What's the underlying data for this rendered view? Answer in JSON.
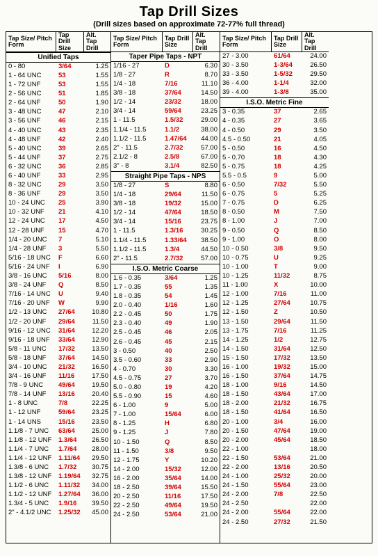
{
  "title": "Tap Drill Sizes",
  "subtitle": "(Drill sizes based on approximate 72-77% full thread)",
  "headers": {
    "c1": "Tap Size/\nPitch Form",
    "c2": "Tap\nDrill\nSize",
    "c3": "Alt.\nTap\nDrill"
  },
  "sections": {
    "unified": "Unified Taps",
    "npt": "Taper Pipe Taps - NPT",
    "nps": "Straight Pipe Taps - NPS",
    "iso_coarse": "I.S.O. Metric Coarse",
    "iso_fine": "I.S.O. Metric Fine"
  },
  "col1": [
    [
      "0 - 80",
      "3/64",
      "1.25"
    ],
    [
      "1 - 64 UNC",
      "53",
      "1.55"
    ],
    [
      "1 - 72 UNF",
      "53",
      "1.55"
    ],
    [
      "2 - 56 UNC",
      "51",
      "1.85"
    ],
    [
      "2 - 64 UNF",
      "50",
      "1.90"
    ],
    [
      "3 - 48 UNC",
      "47",
      "2.10"
    ],
    [
      "3 - 56 UNF",
      "46",
      "2.15"
    ],
    [
      "4 - 40 UNC",
      "43",
      "2.35"
    ],
    [
      "4 - 48 UNF",
      "42",
      "2.40"
    ],
    [
      "5 - 40 UNC",
      "39",
      "2.65"
    ],
    [
      "5 - 44 UNF",
      "37",
      "2.75"
    ],
    [
      "6 - 32 UNC",
      "36",
      "2.85"
    ],
    [
      "6 - 40 UNF",
      "33",
      "2.95"
    ],
    [
      "8 - 32 UNC",
      "29",
      "3.50"
    ],
    [
      "8 - 36 UNF",
      "29",
      "3.50"
    ],
    [
      "10 - 24 UNC",
      "25",
      "3.90"
    ],
    [
      "10 - 32 UNF",
      "21",
      "4.10"
    ],
    [
      "12 - 24 UNC",
      "17",
      "4.50"
    ],
    [
      "12 - 28 UNF",
      "15",
      "4.70"
    ],
    [
      "1/4 - 20 UNC",
      "7",
      "5.10"
    ],
    [
      "1/4 - 28 UNF",
      "3",
      "5.50"
    ],
    [
      "5/16 - 18 UNC",
      "F",
      "6.60"
    ],
    [
      "5/16 - 24 UNF",
      "I",
      "6.90"
    ],
    [
      "3/8 - 16 UNC",
      "5/16",
      "8.00"
    ],
    [
      "3/8 - 24 UNF",
      "Q",
      "8.50"
    ],
    [
      "7/16 - 14 UNC",
      "U",
      "9.40"
    ],
    [
      "7/16 - 20 UNF",
      "W",
      "9.90"
    ],
    [
      "1/2 - 13 UNC",
      "27/64",
      "10.80"
    ],
    [
      "1/2 - 20 UNF",
      "29/64",
      "11.50"
    ],
    [
      "9/16 - 12 UNC",
      "31/64",
      "12.20"
    ],
    [
      "9/16 - 18 UNF",
      "33/64",
      "12.90"
    ],
    [
      "5/8 - 11 UNC",
      "17/32",
      "13.50"
    ],
    [
      "5/8 - 18 UNF",
      "37/64",
      "14.50"
    ],
    [
      "3/4 - 10 UNC",
      "21/32",
      "16.50"
    ],
    [
      "3/4 - 16 UNF",
      "11/16",
      "17.50"
    ],
    [
      "7/8 - 9 UNC",
      "49/64",
      "19.50"
    ],
    [
      "7/8 - 14 UNF",
      "13/16",
      "20.40"
    ],
    [
      "1 - 8 UNC",
      "7/8",
      "22.25"
    ],
    [
      "1 - 12 UNF",
      "59/64",
      "23.25"
    ],
    [
      "1 - 14 UNS",
      "15/16",
      "23.50"
    ],
    [
      "1.1/8 - 7 UNC",
      "63/64",
      "25.00"
    ],
    [
      "1.1/8 - 12 UNF",
      "1.3/64",
      "26.50"
    ],
    [
      "1.1/4 - 7 UNC",
      "1.7/64",
      "28.00"
    ],
    [
      "1.1/4 - 12 UNF",
      "1.11/64",
      "29.50"
    ],
    [
      "1.3/8 - 6 UNC",
      "1.7/32",
      "30.75"
    ],
    [
      "1.3/8 - 12 UNF",
      "1.19/64",
      "32.75"
    ],
    [
      "1.1/2 - 6 UNC",
      "1.11/32",
      "34.00"
    ],
    [
      "1.1/2 - 12 UNF",
      "1.27/64",
      "36.00"
    ],
    [
      "1.3/4 - 5 UNC",
      "1.9/16",
      "39.50"
    ],
    [
      "2\" - 4.1/2 UNC",
      "1.25/32",
      "45.00"
    ]
  ],
  "col2_npt": [
    [
      "1/16 - 27",
      "D",
      "6.30"
    ],
    [
      "1/8 - 27",
      "R",
      "8.70"
    ],
    [
      "1/4 - 18",
      "7/16",
      "11.10"
    ],
    [
      "3/8 - 18",
      "37/64",
      "14.50"
    ],
    [
      "1/2 - 14",
      "23/32",
      "18.00"
    ],
    [
      "3/4 - 14",
      "59/64",
      "23.25"
    ],
    [
      "1 - 11.5",
      "1.5/32",
      "29.00"
    ],
    [
      "1.1/4 - 11.5",
      "1.1/2",
      "38.00"
    ],
    [
      "1.1/2 - 11.5",
      "1.47/64",
      "44.00"
    ],
    [
      "2\" - 11.5",
      "2.7/32",
      "57.00"
    ],
    [
      "2.1/2 - 8",
      "2.5/8",
      "67.00"
    ],
    [
      "3\" - 8",
      "3.1/4",
      "82.50"
    ]
  ],
  "col2_nps": [
    [
      "1/8 - 27",
      "S",
      "8.80"
    ],
    [
      "1/4 - 18",
      "29/64",
      "11.50"
    ],
    [
      "3/8 - 18",
      "19/32",
      "15.00"
    ],
    [
      "1/2 - 14",
      "47/64",
      "18.50"
    ],
    [
      "3/4 - 14",
      "15/16",
      "23.75"
    ],
    [
      "1 - 11.5",
      "1.3/16",
      "30.25"
    ],
    [
      "1.1/4 - 11.5",
      "1.33/64",
      "38.50"
    ],
    [
      "1.1/2 - 11.5",
      "1.3/4",
      "44.50"
    ],
    [
      "2\" - 11.5",
      "2.7/32",
      "57.00"
    ]
  ],
  "col2_iso": [
    [
      "1.6 - 0.35",
      "1.25",
      "",
      ""
    ],
    [
      "1.7 - 0.35",
      "1.35",
      "",
      ""
    ],
    [
      "1.8 - 0.35",
      "1.45",
      "",
      ""
    ],
    [
      "2.0 - 0.40",
      "1.60",
      "",
      ""
    ],
    [
      "2.2 - 0.45",
      "1.75",
      "",
      ""
    ],
    [
      "2.3 - 0.40",
      "1.90",
      "",
      ""
    ],
    [
      "2.5 - 0.45",
      "2.05",
      "",
      ""
    ],
    [
      "2.6 - 0.45",
      "2.15",
      "",
      ""
    ],
    [
      "3 - 0.50",
      "2.50",
      "",
      ""
    ],
    [
      "3.5 - 0.60",
      "2.90",
      "",
      ""
    ],
    [
      "4 - 0.70",
      "3.30",
      "",
      ""
    ],
    [
      "4.5 - 0.75",
      "3.70",
      "",
      ""
    ],
    [
      "5.0 - 0.80",
      "4.20",
      "",
      ""
    ],
    [
      "5.5 - 0.90",
      "4.60",
      "",
      ""
    ],
    [
      "6 - 1.00",
      "5.00",
      "",
      ""
    ],
    [
      "7 - 1.00",
      "6.00",
      "",
      ""
    ],
    [
      "8 - 1.25",
      "6.80",
      "",
      ""
    ],
    [
      "9 - 1.25",
      "7.80",
      "",
      ""
    ],
    [
      "10 - 1.50",
      "8.50",
      "",
      ""
    ],
    [
      "11 - 1.50",
      "9.50",
      "",
      ""
    ],
    [
      "12 - 1.75",
      "10.20",
      "",
      ""
    ],
    [
      "14 - 2.00",
      "12.00",
      "",
      ""
    ],
    [
      "16 - 2.00",
      "14.00",
      "",
      ""
    ],
    [
      "18 - 2.50",
      "15.50",
      "",
      ""
    ],
    [
      "20 - 2.50",
      "17.50",
      "",
      ""
    ],
    [
      "22 - 2.50",
      "19.50",
      "",
      ""
    ],
    [
      "24 - 2.50",
      "21.00",
      "",
      ""
    ]
  ],
  "col2_iso_t": [
    "3/64",
    "55",
    "54",
    "1/16",
    "50",
    "49",
    "46",
    "45",
    "40",
    "33",
    "30",
    "27",
    "19",
    "15",
    "9",
    "15/64",
    "H",
    "J",
    "Q",
    "3/8",
    "Y",
    "15/32",
    "35/64",
    "39/64",
    "11/16",
    "49/64",
    "53/64"
  ],
  "col3_top": [
    [
      "27 - 3.00",
      "61/64",
      "24.00"
    ],
    [
      "30 - 3.50",
      "1-3/64",
      "26.50"
    ],
    [
      "33 - 3.50",
      "1-5/32",
      "29.50"
    ],
    [
      "36 - 4.00",
      "1-1/4",
      "32.00"
    ],
    [
      "39 - 4.00",
      "1-3/8",
      "35.00"
    ]
  ],
  "col3_fine": [
    [
      "3 - 0.35",
      "37",
      "2.65"
    ],
    [
      "4 - 0.35",
      "27",
      "3.65"
    ],
    [
      "4 - 0.50",
      "29",
      "3.50"
    ],
    [
      "4.5 - 0.50",
      "21",
      "4.05"
    ],
    [
      "5 - 0.50",
      "16",
      "4.50"
    ],
    [
      "5 - 0.70",
      "18",
      "4.30"
    ],
    [
      "5 - 0.75",
      "18",
      "4.25"
    ],
    [
      "5.5 - 0.5",
      "9",
      "5.00"
    ],
    [
      "6 - 0.50",
      "7/32",
      "5.50"
    ],
    [
      "6 - 0.75",
      "5",
      "5.25"
    ],
    [
      "7 - 0.75",
      "D",
      "6.25"
    ],
    [
      "8 - 0.50",
      "M",
      "7.50"
    ],
    [
      "8 - 1.00",
      "J",
      "7.00"
    ],
    [
      "9 - 0.50",
      "Q",
      "8.50"
    ],
    [
      "9 - 1.00",
      "O",
      "8.00"
    ],
    [
      "10 - 0.50",
      "3/8",
      "9.50"
    ],
    [
      "10 - 0.75",
      "U",
      "9.25"
    ],
    [
      "10 - 1.00",
      "T",
      "9.00"
    ],
    [
      "10 - 1.25",
      "11/32",
      "8.75"
    ],
    [
      "11 - 1.00",
      "X",
      "10.00"
    ],
    [
      "12 - 1.00",
      "7/16",
      "11.00"
    ],
    [
      "12 - 1.25",
      "27/64",
      "10.75"
    ],
    [
      "12 - 1.50",
      "Z",
      "10.50"
    ],
    [
      "13 - 1.50",
      "29/64",
      "11.50"
    ],
    [
      "13 - 1.75",
      "7/16",
      "11.25"
    ],
    [
      "14 - 1.25",
      "1/2",
      "12.75"
    ],
    [
      "14 - 1.50",
      "31/64",
      "12.50"
    ],
    [
      "15 - 1.50",
      "17/32",
      "13.50"
    ],
    [
      "16 - 1.00",
      "19/32",
      "15.00"
    ],
    [
      "16 - 1.50",
      "37/64",
      "14.75"
    ],
    [
      "18 - 1.00",
      "9/16",
      "14.50"
    ],
    [
      "18 - 1.50",
      "43/64",
      "17.00"
    ],
    [
      "18 - 2.00",
      "21/32",
      "16.75"
    ],
    [
      "18 - 1.50",
      "41/64",
      "16.50"
    ],
    [
      "20 - 1.00",
      "3/4",
      "16.00"
    ],
    [
      "20 - 1.50",
      "47/64",
      "19.00"
    ],
    [
      "20 - 2.00",
      "45/64",
      "18.50"
    ],
    [
      "22 - 1.00",
      "",
      "18.00"
    ],
    [
      "22 - 1.50",
      "53/64",
      "21.00"
    ],
    [
      "22 - 2.00",
      "13/16",
      "20.50"
    ],
    [
      "24 - 1.00",
      "25/32",
      "20.00"
    ],
    [
      "24 - 1.50",
      "55/64",
      "23.00"
    ],
    [
      "24 - 2.00",
      "7/8",
      "22.50"
    ],
    [
      "24 - 2.50",
      "",
      "22.00"
    ],
    [
      "24 - 2.00",
      "55/64",
      "22.00"
    ],
    [
      "24 - 2.50",
      "27/32",
      "21.50"
    ]
  ]
}
